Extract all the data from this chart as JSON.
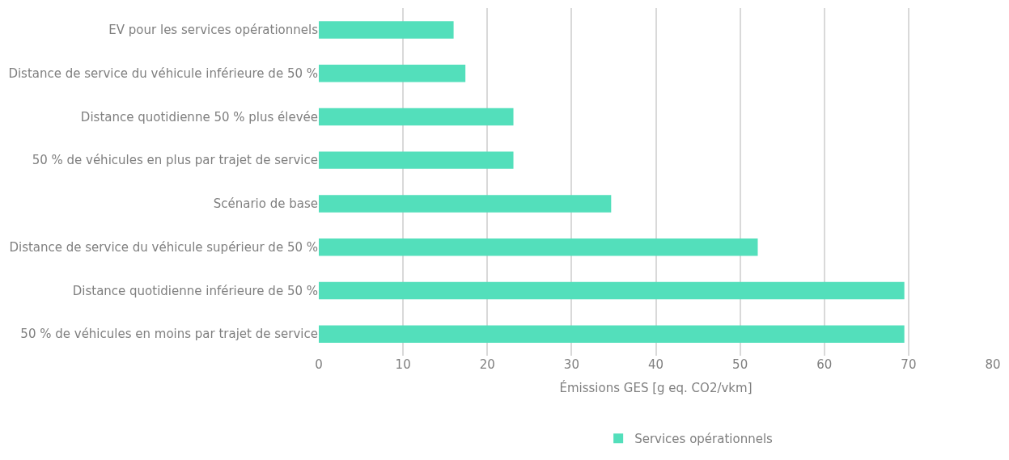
{
  "chart_data": {
    "type": "bar",
    "orientation": "horizontal",
    "xlabel": "Émissions GES [g eq. CO2/vkm]",
    "categories": [
      "EV pour les services opérationnels",
      "Distance de service du véhicule inférieure de 50 %",
      "Distance quotidienne 50 % plus élevée",
      "50 % de véhicules en plus par trajet de service",
      "Scénario de base",
      "Distance de service du véhicule supérieur de 50 %",
      "Distance quotidienne inférieure de 50 %",
      "50 % de véhicules en moins par trajet de service"
    ],
    "series": [
      {
        "name": "Services opérationnels",
        "color": "#53dfbb",
        "values": [
          16,
          17.4,
          23.1,
          23.1,
          34.7,
          52.1,
          69.5,
          69.5
        ]
      }
    ],
    "xlim": [
      0,
      80
    ],
    "xticks": [
      0,
      10,
      20,
      30,
      40,
      50,
      60,
      70,
      80
    ],
    "grid": "x",
    "legend": "bottom"
  }
}
